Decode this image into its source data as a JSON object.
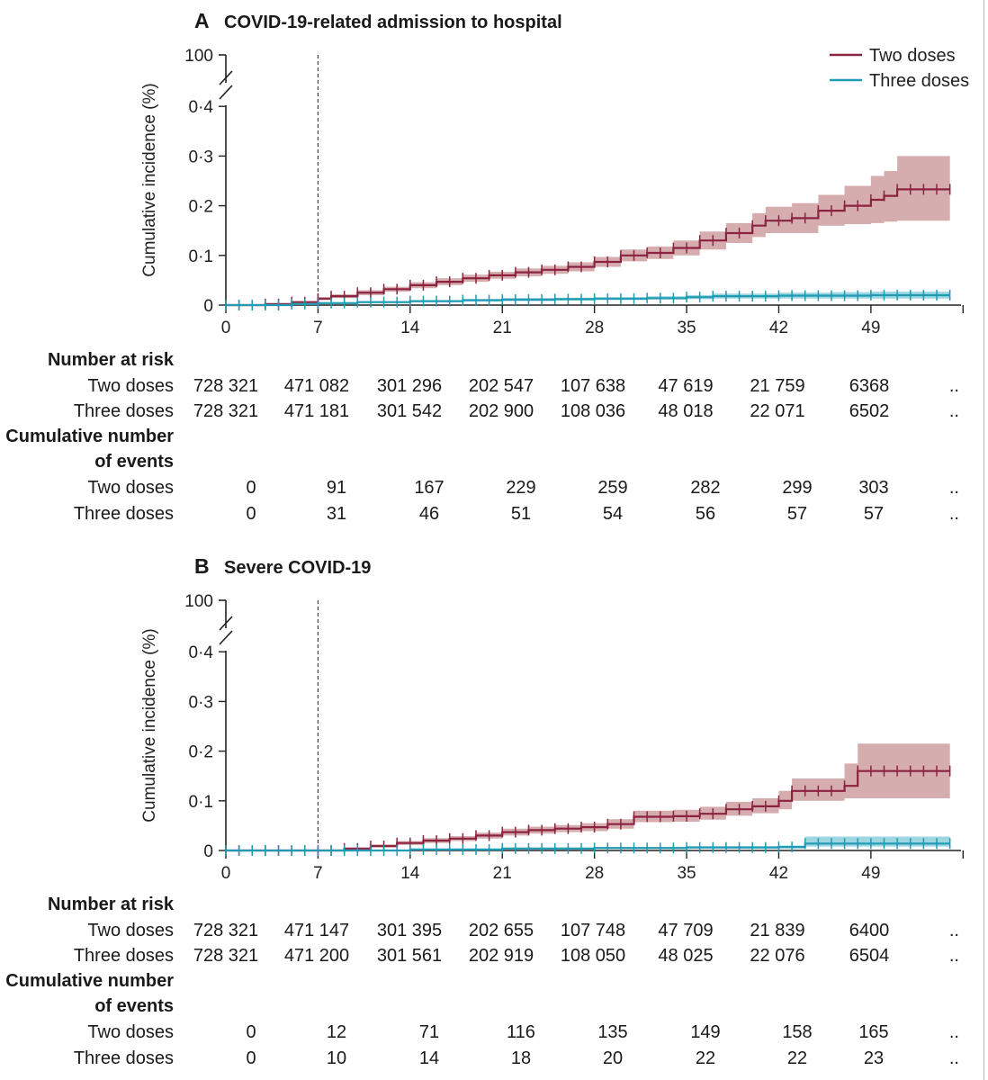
{
  "colors": {
    "two_doses": "#8b2340",
    "two_doses_band": "#c48a8c",
    "three_doses": "#1f9bb3",
    "three_doses_band": "#7cc7d6"
  },
  "legend": {
    "two_doses": "Two doses",
    "three_doses": "Three doses"
  },
  "chart_data": [
    {
      "type": "line",
      "panel": "A",
      "title": "COVID-19-related admission to hospital",
      "ylabel": "Cumulative incidence (%)",
      "xlabel": "",
      "x_ticks": [
        0,
        7,
        14,
        21,
        28,
        35,
        42,
        49
      ],
      "y_ticks": [
        0,
        0.1,
        0.2,
        0.3,
        0.4
      ],
      "y_tick_labels": [
        "0",
        "0·1",
        "0·2",
        "0·3",
        "0·4"
      ],
      "y_break_label": "100",
      "xlim": [
        0,
        55
      ],
      "ylim": [
        0,
        0.4
      ],
      "reference_line_x": 7,
      "legend_position": "top-right",
      "series": [
        {
          "name": "Two doses",
          "x": [
            0,
            3,
            5,
            7,
            8,
            10,
            12,
            14,
            16,
            18,
            20,
            22,
            24,
            26,
            28,
            30,
            32,
            34,
            36,
            38,
            40,
            41,
            43,
            45,
            47,
            49,
            50,
            51,
            55
          ],
          "y": [
            0,
            0.002,
            0.006,
            0.013,
            0.018,
            0.025,
            0.032,
            0.04,
            0.047,
            0.054,
            0.06,
            0.066,
            0.071,
            0.077,
            0.087,
            0.1,
            0.105,
            0.115,
            0.13,
            0.145,
            0.16,
            0.17,
            0.175,
            0.19,
            0.2,
            0.212,
            0.22,
            0.233,
            0.233
          ],
          "lower": [
            0,
            0.001,
            0.004,
            0.01,
            0.014,
            0.02,
            0.027,
            0.034,
            0.04,
            0.047,
            0.053,
            0.058,
            0.063,
            0.068,
            0.077,
            0.088,
            0.093,
            0.1,
            0.112,
            0.125,
            0.137,
            0.145,
            0.145,
            0.16,
            0.163,
            0.165,
            0.168,
            0.17,
            0.17
          ],
          "upper": [
            0,
            0.003,
            0.008,
            0.016,
            0.022,
            0.03,
            0.037,
            0.046,
            0.054,
            0.061,
            0.067,
            0.074,
            0.079,
            0.086,
            0.097,
            0.112,
            0.118,
            0.13,
            0.148,
            0.165,
            0.185,
            0.198,
            0.205,
            0.222,
            0.24,
            0.26,
            0.27,
            0.3,
            0.3
          ]
        },
        {
          "name": "Three doses",
          "x": [
            0,
            5,
            7,
            10,
            14,
            18,
            21,
            25,
            28,
            32,
            35,
            37,
            42,
            46,
            49,
            55
          ],
          "y": [
            0,
            0.002,
            0.004,
            0.006,
            0.008,
            0.01,
            0.011,
            0.012,
            0.013,
            0.014,
            0.016,
            0.018,
            0.019,
            0.019,
            0.02,
            0.02
          ],
          "lower": [
            0,
            0.001,
            0.002,
            0.004,
            0.006,
            0.007,
            0.008,
            0.009,
            0.01,
            0.011,
            0.012,
            0.013,
            0.013,
            0.013,
            0.013,
            0.013
          ],
          "upper": [
            0,
            0.003,
            0.006,
            0.008,
            0.01,
            0.012,
            0.014,
            0.015,
            0.016,
            0.018,
            0.02,
            0.023,
            0.025,
            0.026,
            0.027,
            0.027
          ]
        }
      ],
      "risk_table": {
        "number_at_risk_label": "Number at risk",
        "cumulative_events_label_1": "Cumulative number",
        "cumulative_events_label_2": "of events",
        "rows_at_risk": [
          {
            "label": "Two doses",
            "values": [
              "728 321",
              "471 082",
              "301 296",
              "202 547",
              "107 638",
              "47 619",
              "21 759",
              "6368",
              ".."
            ]
          },
          {
            "label": "Three doses",
            "values": [
              "728 321",
              "471 181",
              "301 542",
              "202 900",
              "108 036",
              "48 018",
              "22 071",
              "6502",
              ".."
            ]
          }
        ],
        "rows_events": [
          {
            "label": "Two doses",
            "values": [
              "0",
              "91",
              "167",
              "229",
              "259",
              "282",
              "299",
              "303",
              ".."
            ]
          },
          {
            "label": "Three doses",
            "values": [
              "0",
              "31",
              "46",
              "51",
              "54",
              "56",
              "57",
              "57",
              ".."
            ]
          }
        ]
      }
    },
    {
      "type": "line",
      "panel": "B",
      "title": "Severe COVID-19",
      "ylabel": "Cumulative incidence (%)",
      "xlabel": "",
      "x_ticks": [
        0,
        7,
        14,
        21,
        28,
        35,
        42,
        49
      ],
      "y_ticks": [
        0,
        0.1,
        0.2,
        0.3,
        0.4
      ],
      "y_tick_labels": [
        "0",
        "0·1",
        "0·2",
        "0·3",
        "0·4"
      ],
      "y_break_label": "100",
      "xlim": [
        0,
        55
      ],
      "ylim": [
        0,
        0.4
      ],
      "reference_line_x": 7,
      "legend_position": "none",
      "series": [
        {
          "name": "Two doses",
          "x": [
            0,
            7,
            9,
            11,
            13,
            15,
            17,
            19,
            21,
            23,
            25,
            27,
            29,
            31,
            34,
            36,
            38,
            40,
            42,
            43,
            46,
            47,
            48,
            55
          ],
          "y": [
            0,
            0.0,
            0.004,
            0.009,
            0.015,
            0.02,
            0.024,
            0.03,
            0.037,
            0.041,
            0.044,
            0.047,
            0.053,
            0.068,
            0.069,
            0.074,
            0.083,
            0.089,
            0.1,
            0.12,
            0.12,
            0.13,
            0.16,
            0.16
          ],
          "lower": [
            0,
            0.0,
            0.002,
            0.006,
            0.011,
            0.015,
            0.019,
            0.024,
            0.03,
            0.034,
            0.037,
            0.039,
            0.044,
            0.057,
            0.058,
            0.062,
            0.07,
            0.075,
            0.083,
            0.1,
            0.1,
            0.105,
            0.105,
            0.105
          ],
          "upper": [
            0,
            0.0,
            0.006,
            0.012,
            0.019,
            0.025,
            0.029,
            0.036,
            0.044,
            0.048,
            0.051,
            0.055,
            0.063,
            0.08,
            0.082,
            0.088,
            0.098,
            0.105,
            0.12,
            0.145,
            0.145,
            0.175,
            0.215,
            0.215
          ]
        },
        {
          "name": "Three doses",
          "x": [
            0,
            7,
            14,
            21,
            28,
            35,
            42,
            44,
            55
          ],
          "y": [
            0,
            0.0,
            0.002,
            0.004,
            0.005,
            0.006,
            0.007,
            0.014,
            0.014
          ],
          "lower": [
            0,
            0.0,
            0.001,
            0.002,
            0.003,
            0.004,
            0.004,
            0.008,
            0.008
          ],
          "upper": [
            0,
            0.0,
            0.003,
            0.006,
            0.007,
            0.009,
            0.01,
            0.028,
            0.028
          ]
        }
      ],
      "risk_table": {
        "number_at_risk_label": "Number at risk",
        "cumulative_events_label_1": "Cumulative number",
        "cumulative_events_label_2": "of events",
        "rows_at_risk": [
          {
            "label": "Two doses",
            "values": [
              "728 321",
              "471 147",
              "301 395",
              "202 655",
              "107 748",
              "47 709",
              "21 839",
              "6400",
              ".."
            ]
          },
          {
            "label": "Three doses",
            "values": [
              "728 321",
              "471 200",
              "301 561",
              "202 919",
              "108 050",
              "48 025",
              "22 076",
              "6504",
              ".."
            ]
          }
        ],
        "rows_events": [
          {
            "label": "Two doses",
            "values": [
              "0",
              "12",
              "71",
              "116",
              "135",
              "149",
              "158",
              "165",
              ".."
            ]
          },
          {
            "label": "Three doses",
            "values": [
              "0",
              "10",
              "14",
              "18",
              "20",
              "22",
              "22",
              "23",
              ".."
            ]
          }
        ]
      }
    }
  ]
}
